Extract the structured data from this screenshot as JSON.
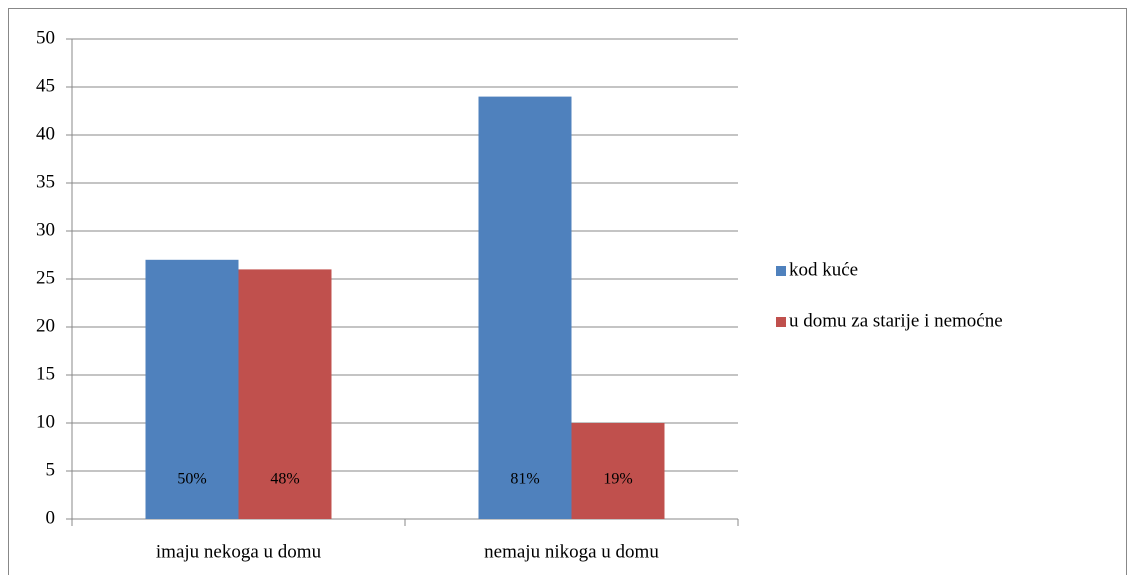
{
  "chart_data": {
    "type": "bar",
    "categories": [
      "imaju nekoga u domu",
      "nemaju nikoga u domu"
    ],
    "series": [
      {
        "name": "kod kuće",
        "color": "#4f81bd",
        "values": [
          27,
          44
        ],
        "annotations": [
          "50%",
          "81%"
        ]
      },
      {
        "name": "u domu za starije i nemoćne",
        "color": "#c0504d",
        "values": [
          26,
          10
        ],
        "annotations": [
          "48%",
          "19%"
        ]
      }
    ],
    "ylim": [
      0,
      50
    ],
    "yticks": [
      0,
      5,
      10,
      15,
      20,
      25,
      30,
      35,
      40,
      45,
      50
    ],
    "grid": true,
    "legend": "right"
  }
}
